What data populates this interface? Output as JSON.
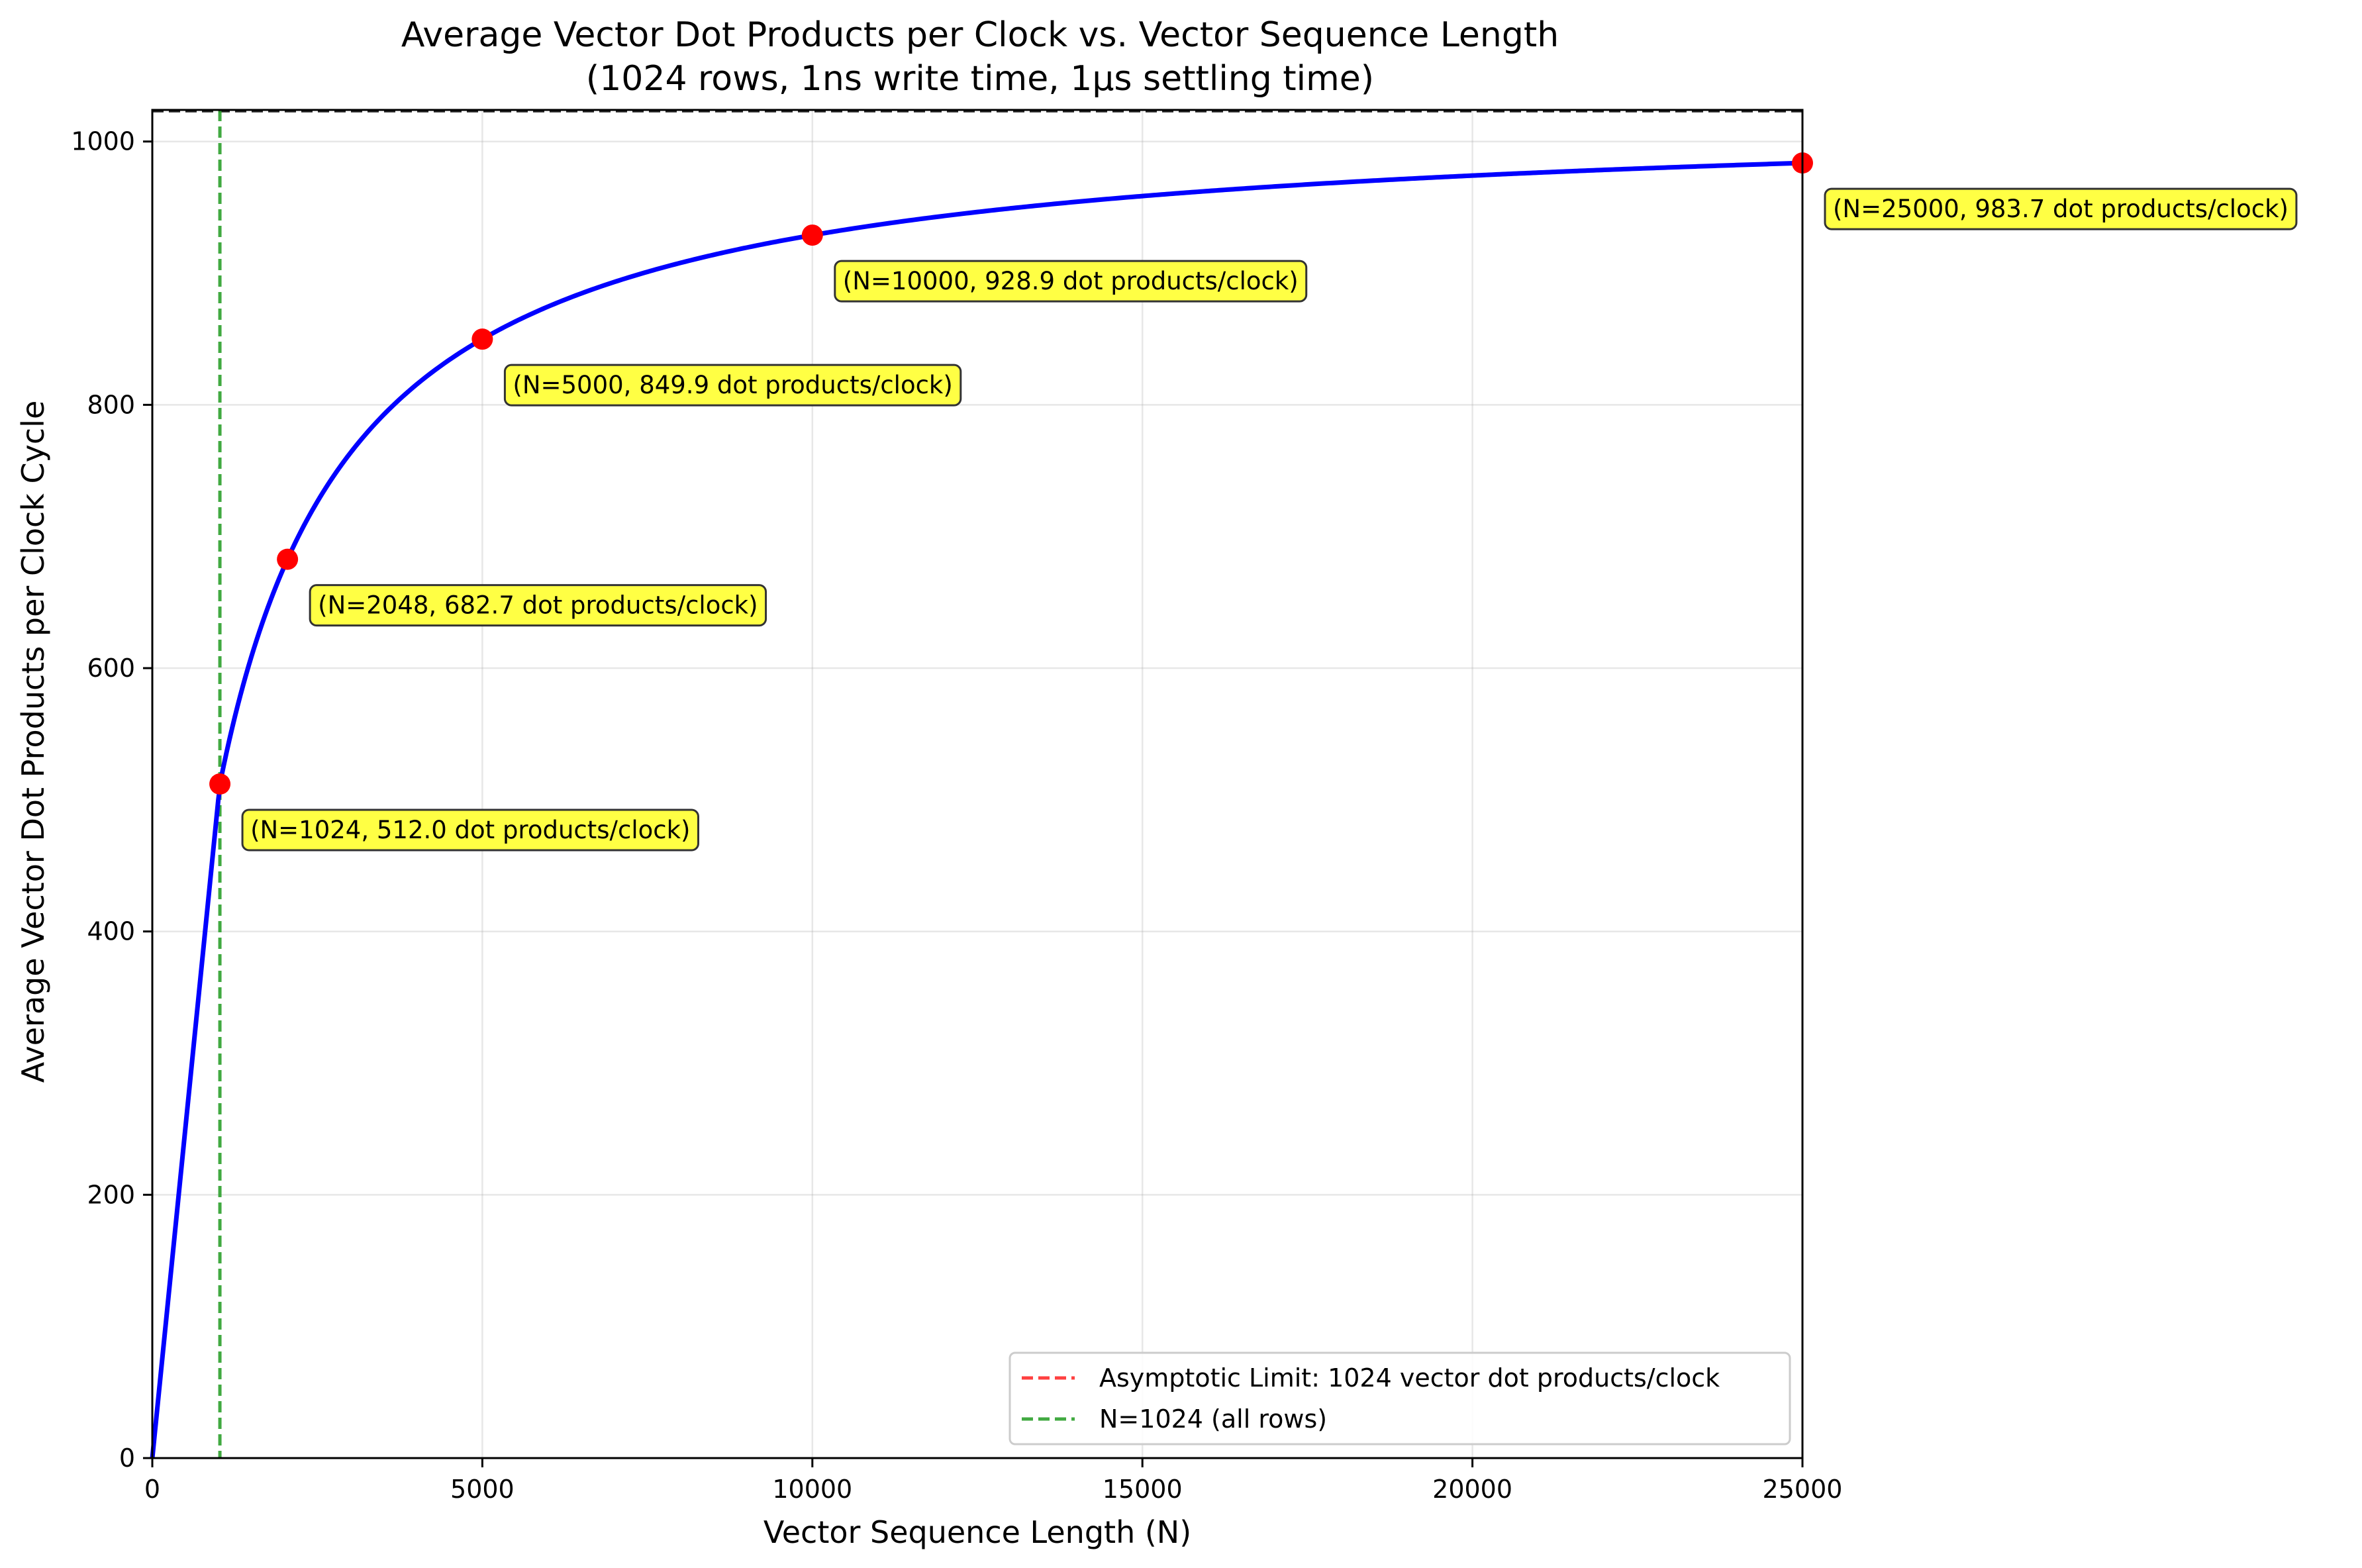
{
  "chart_data": {
    "type": "line",
    "title": "Average Vector Dot Products per Clock vs. Vector Sequence Length",
    "subtitle": "(1024 rows, 1ns write time, 1µs settling time)",
    "xlabel": "Vector Sequence Length (N)",
    "ylabel": "Average Vector Dot Products per Clock Cycle",
    "xlim": [
      0,
      25000
    ],
    "ylim": [
      0,
      1024
    ],
    "x_ticks": [
      0,
      5000,
      10000,
      15000,
      20000,
      25000
    ],
    "x_tick_labels": [
      "0",
      "5000",
      "10000",
      "15000",
      "20000",
      "25000"
    ],
    "y_ticks": [
      0,
      200,
      400,
      600,
      800,
      1000
    ],
    "y_tick_labels": [
      "0",
      "200",
      "400",
      "600",
      "800",
      "1000"
    ],
    "grid": true,
    "legend_position": "lower-right",
    "series": [
      {
        "kind": "curve",
        "color": "#0000ff",
        "function": "N<=1024 ? N/2 : 1024*N/(N+1024)",
        "x_range": [
          0,
          25000
        ]
      },
      {
        "kind": "hline",
        "name": "Asymptotic Limit: 1024 vector dot products/clock",
        "y": 1024,
        "color": "#ff0000",
        "dash": true
      },
      {
        "kind": "vline",
        "name": "N=1024 (all rows)",
        "x": 1024,
        "color": "#2ca02c",
        "dash": true
      }
    ],
    "points": [
      {
        "x": 1024,
        "y": 512.0,
        "label": "(N=1024, 512.0 dot products/clock)"
      },
      {
        "x": 2048,
        "y": 682.7,
        "label": "(N=2048, 682.7 dot products/clock)"
      },
      {
        "x": 5000,
        "y": 849.9,
        "label": "(N=5000, 849.9 dot products/clock)"
      },
      {
        "x": 10000,
        "y": 928.9,
        "label": "(N=10000, 928.9 dot products/clock)"
      },
      {
        "x": 25000,
        "y": 983.7,
        "label": "(N=25000, 983.7 dot products/clock)"
      }
    ],
    "point_color": "#ff0000",
    "annotation_bg": "#ffff44"
  }
}
